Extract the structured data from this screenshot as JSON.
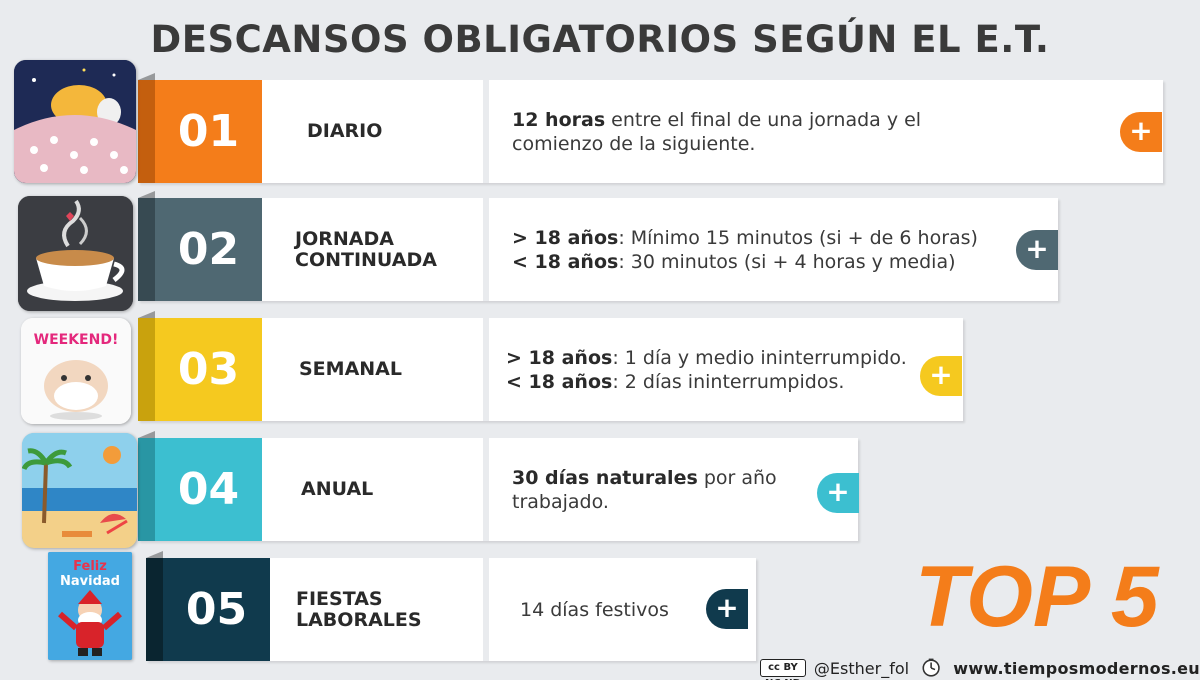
{
  "title": "DESCANSOS OBLIGATORIOS SEGÚN EL E.T.",
  "items": [
    {
      "num": "01",
      "label": "DIARIO",
      "color": "#f47d1a",
      "desc_bold1": "12 horas",
      "desc_text1": " entre el final de una jornada y el comienzo de la siguiente.",
      "desc_bold2": "",
      "desc_text2": ""
    },
    {
      "num": "02",
      "label": "JORNADA\nCONTINUADA",
      "color": "#4f6872",
      "desc_bold1": "> 18 años",
      "desc_text1": ": Mínimo 15 minutos (si + de 6 horas)",
      "desc_bold2": "< 18 años",
      "desc_text2": ": 30 minutos (si + 4 horas y media)"
    },
    {
      "num": "03",
      "label": "SEMANAL",
      "color": "#f5c91f",
      "desc_bold1": "> 18 años",
      "desc_text1": ": 1 día y medio ininterrumpido.",
      "desc_bold2": "< 18 años",
      "desc_text2": ": 2 días ininterrumpidos."
    },
    {
      "num": "04",
      "label": "ANUAL",
      "color": "#3cbfd0",
      "desc_bold1": "30 días naturales",
      "desc_text1": " por año trabajado.",
      "desc_bold2": "",
      "desc_text2": ""
    },
    {
      "num": "05",
      "label": "FIESTAS\nLABORALES",
      "color": "#103a4d",
      "desc_bold1": "",
      "desc_text1": "14 días festivos",
      "desc_bold2": "",
      "desc_text2": ""
    }
  ],
  "plus_symbol": "+",
  "top5": "TOP 5",
  "footer": {
    "license": "cc BY NC ND",
    "author": "@Esther_fol",
    "website": "www.tiemposmodernos.eu"
  },
  "thumb_texts": {
    "weekend": "WEEKEND!",
    "feliz": "Feliz",
    "navidad": "Navidad"
  }
}
